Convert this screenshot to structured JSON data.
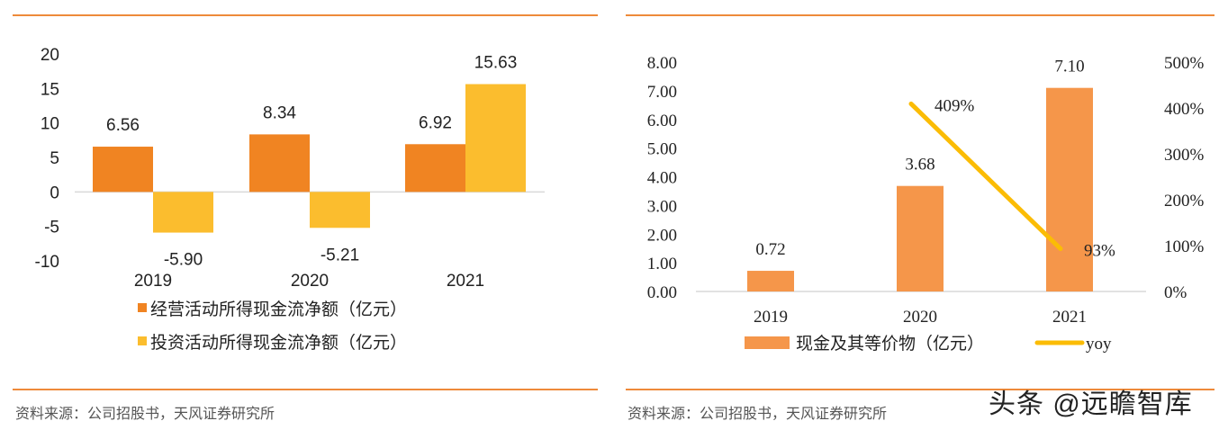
{
  "source_left": "资料来源：公司招股书，天风证券研究所",
  "source_right": "资料来源：公司招股书，天风证券研究所",
  "watermark": "头条 @远瞻智库",
  "colors": {
    "rule": "#ee8a3a",
    "orange": "#f08422",
    "yellow": "#fbbd2e",
    "bar_right": "#f5964a",
    "line": "#fbbc05",
    "axis": "#d9d9d9"
  },
  "chart_data": [
    {
      "type": "bar",
      "categories": [
        "2019",
        "2020",
        "2021"
      ],
      "series": [
        {
          "name": "经营活动所得现金流净额（亿元）",
          "values": [
            6.56,
            8.34,
            6.92
          ],
          "labels": [
            "6.56",
            "8.34",
            "6.92"
          ]
        },
        {
          "name": "投资活动所得现金流净额（亿元）",
          "values": [
            -5.9,
            -5.21,
            15.63
          ],
          "labels": [
            "-5.90",
            "-5.21",
            "15.63"
          ]
        }
      ],
      "yticks": [
        "20",
        "15",
        "10",
        "5",
        "0",
        "-5",
        "-10"
      ],
      "ylim": [
        -10,
        20
      ],
      "legend": "bottom",
      "grid": false
    },
    {
      "type": "bar+line",
      "categories": [
        "2019",
        "2020",
        "2021"
      ],
      "bar_series": {
        "name": "现金及其等价物（亿元）",
        "values": [
          0.72,
          3.68,
          7.1
        ],
        "labels": [
          "0.72",
          "3.68",
          "7.10"
        ]
      },
      "line_series": {
        "name": "yoy",
        "values": [
          null,
          409,
          93
        ],
        "labels": [
          "",
          "409%",
          "93%"
        ],
        "axis": "right"
      },
      "yticks_left": [
        "8.00",
        "7.00",
        "6.00",
        "5.00",
        "4.00",
        "3.00",
        "2.00",
        "1.00",
        "0.00"
      ],
      "yticks_right": [
        "500%",
        "400%",
        "300%",
        "200%",
        "100%",
        "0%"
      ],
      "ylim_left": [
        0,
        8
      ],
      "ylim_right": [
        0,
        500
      ],
      "legend": "bottom",
      "grid": false
    }
  ]
}
